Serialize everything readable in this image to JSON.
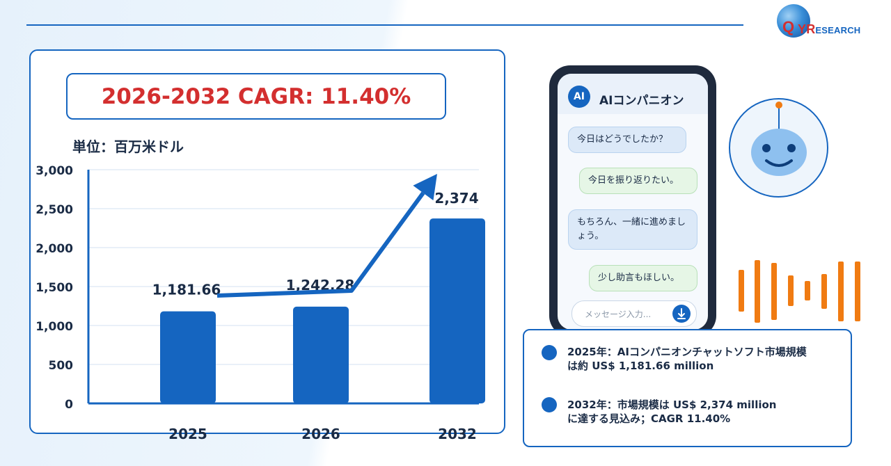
{
  "logo": {
    "q": "Q",
    "first": "YR",
    "rest": "ESEARCH"
  },
  "headline": {
    "cagr": "2026-2032 CAGR: 11.40%"
  },
  "unit_label": "単位：百万米ドル",
  "chart_data": {
    "type": "bar",
    "categories": [
      "2025",
      "2026",
      "2032"
    ],
    "values": [
      1181.66,
      1242.28,
      2374
    ],
    "value_labels": [
      "1,181.66",
      "1,242.28",
      "2,374"
    ],
    "ylim": [
      0,
      3000
    ],
    "yticks": [
      0,
      500,
      1000,
      1500,
      2000,
      2500,
      3000
    ],
    "ytick_labels": [
      "0",
      "500",
      "1,000",
      "1,500",
      "2,000",
      "2,500",
      "3,000"
    ],
    "grid": true,
    "bar_color": "#1565c0",
    "trend_arrow": true
  },
  "chat": {
    "avatar": "AI",
    "title": "AIコンパニオン",
    "messages": [
      {
        "role": "ai",
        "text": "今日はどうでしたか？"
      },
      {
        "role": "user",
        "text": "今日を振り返りたい。"
      },
      {
        "role": "ai",
        "text": "もちろん、一緒に進めましょう。"
      },
      {
        "role": "user",
        "text": "少し助言もほしい。"
      }
    ],
    "input_placeholder": "メッセージ入力...",
    "send_icon": "microphone-icon"
  },
  "info": {
    "items": [
      {
        "line1": "2025年：AIコンパニオンチャットソフト市場規模",
        "line2": "は約 US$ 1,181.66 million"
      },
      {
        "line1": "2032年：市場規模は US$ 2,374 million",
        "line2": "に達する見込み；CAGR 11.40%"
      }
    ]
  },
  "colors": {
    "accent": "#1565c0",
    "highlight": "#d32f2f",
    "waveform": "#f07b12"
  }
}
